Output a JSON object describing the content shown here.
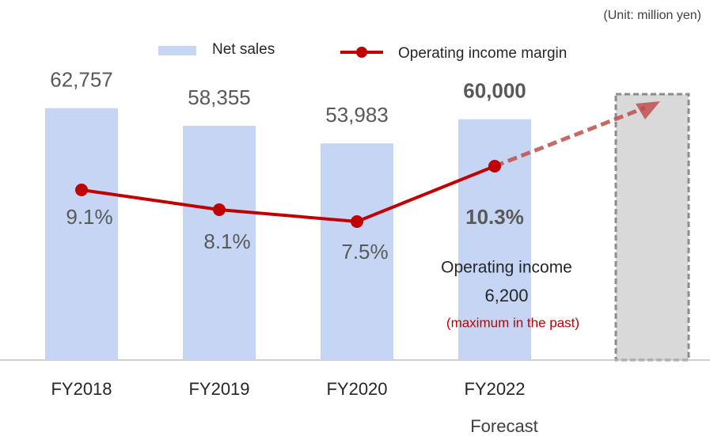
{
  "chart_data": {
    "type": "bar",
    "subtitle": "(Unit: million yen)",
    "categories": [
      "FY2018",
      "FY2019",
      "FY2020",
      "FY2022",
      null
    ],
    "series": [
      {
        "name": "Net sales",
        "type": "bar",
        "color": "#c5d5f3",
        "values": [
          62757,
          58355,
          53983,
          60000,
          null
        ],
        "value_labels": [
          "62,757",
          "58,355",
          "53,983",
          "60,000",
          null
        ]
      },
      {
        "name": "Operating income margin",
        "type": "line",
        "axis": "y2",
        "color": "#c00000",
        "values": [
          9.1,
          8.1,
          7.5,
          10.3,
          null
        ],
        "value_labels": [
          "9.1%",
          "8.1%",
          "7.5%",
          "10.3%",
          null
        ]
      }
    ],
    "ylim": [
      0,
      70000
    ],
    "y2lim": [
      0.5,
      14.7
    ],
    "annotations": [
      "Forecast",
      "Operating income",
      "6,200",
      "(maximum in the past)"
    ]
  }
}
